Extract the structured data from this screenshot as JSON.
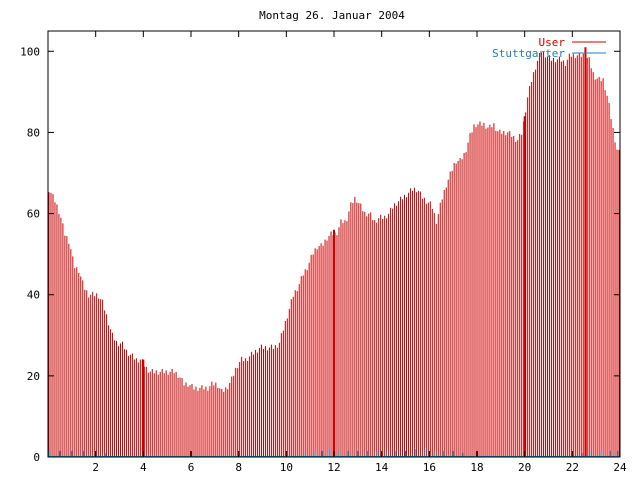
{
  "chart_data": {
    "type": "bar",
    "title": "Montag 26. Januar 2004",
    "xlabel": "",
    "ylabel": "",
    "xlim": [
      0,
      24
    ],
    "ylim": [
      0,
      105
    ],
    "x_ticks": [
      2,
      4,
      6,
      8,
      10,
      12,
      14,
      16,
      18,
      20,
      22,
      24
    ],
    "y_ticks": [
      0,
      20,
      40,
      60,
      80,
      100
    ],
    "grid": false,
    "legend_position": "top-right",
    "colors": {
      "user": "#cc0000",
      "stuttgarter": "#1a7fc0",
      "axes": "#000000",
      "background": "#ffffff"
    },
    "series": [
      {
        "name": "User",
        "style": "impulses",
        "color": "#cc0000",
        "points": [
          [
            0.05,
            66
          ],
          [
            0.3,
            63
          ],
          [
            0.5,
            60
          ],
          [
            0.7,
            55
          ],
          [
            0.9,
            53
          ],
          [
            1.1,
            47
          ],
          [
            1.3,
            46
          ],
          [
            1.5,
            42
          ],
          [
            1.7,
            40
          ],
          [
            1.9,
            40
          ],
          [
            2.1,
            40
          ],
          [
            2.3,
            38
          ],
          [
            2.5,
            34
          ],
          [
            2.7,
            30
          ],
          [
            2.9,
            28
          ],
          [
            3.1,
            28
          ],
          [
            3.3,
            26
          ],
          [
            3.5,
            25
          ],
          [
            3.7,
            24
          ],
          [
            3.9,
            24
          ],
          [
            4.1,
            22
          ],
          [
            4.3,
            21
          ],
          [
            4.5,
            21
          ],
          [
            4.7,
            21
          ],
          [
            4.9,
            21
          ],
          [
            5.1,
            21
          ],
          [
            5.3,
            21
          ],
          [
            5.5,
            20
          ],
          [
            5.7,
            18
          ],
          [
            5.9,
            18
          ],
          [
            6.1,
            17
          ],
          [
            6.3,
            17
          ],
          [
            6.5,
            17
          ],
          [
            6.7,
            17
          ],
          [
            6.9,
            18
          ],
          [
            7.1,
            18
          ],
          [
            7.3,
            16
          ],
          [
            7.5,
            17
          ],
          [
            7.7,
            19
          ],
          [
            7.9,
            22
          ],
          [
            8.1,
            24
          ],
          [
            8.3,
            24
          ],
          [
            8.5,
            25
          ],
          [
            8.7,
            26
          ],
          [
            8.9,
            27
          ],
          [
            9.1,
            27
          ],
          [
            9.3,
            27
          ],
          [
            9.5,
            27
          ],
          [
            9.7,
            28
          ],
          [
            9.9,
            32
          ],
          [
            10.1,
            36
          ],
          [
            10.3,
            40
          ],
          [
            10.5,
            42
          ],
          [
            10.7,
            45
          ],
          [
            10.9,
            47
          ],
          [
            11.1,
            50
          ],
          [
            11.3,
            52
          ],
          [
            11.5,
            52
          ],
          [
            11.7,
            54
          ],
          [
            11.9,
            55
          ],
          [
            12.1,
            55
          ],
          [
            12.3,
            58
          ],
          [
            12.5,
            58
          ],
          [
            12.7,
            62
          ],
          [
            12.9,
            64
          ],
          [
            13.1,
            62
          ],
          [
            13.3,
            60
          ],
          [
            13.5,
            60
          ],
          [
            13.7,
            58
          ],
          [
            13.9,
            59
          ],
          [
            14.1,
            59
          ],
          [
            14.3,
            60
          ],
          [
            14.5,
            62
          ],
          [
            14.7,
            63
          ],
          [
            14.9,
            64
          ],
          [
            15.1,
            65
          ],
          [
            15.3,
            66
          ],
          [
            15.5,
            66
          ],
          [
            15.7,
            64
          ],
          [
            15.9,
            63
          ],
          [
            16.1,
            62
          ],
          [
            16.3,
            58
          ],
          [
            16.5,
            63
          ],
          [
            16.7,
            67
          ],
          [
            16.9,
            70
          ],
          [
            17.1,
            73
          ],
          [
            17.3,
            73
          ],
          [
            17.5,
            75
          ],
          [
            17.7,
            79
          ],
          [
            17.9,
            82
          ],
          [
            18.1,
            82
          ],
          [
            18.3,
            82
          ],
          [
            18.5,
            81
          ],
          [
            18.7,
            82
          ],
          [
            18.9,
            80
          ],
          [
            19.1,
            80
          ],
          [
            19.3,
            80
          ],
          [
            19.5,
            79
          ],
          [
            19.7,
            78
          ],
          [
            19.9,
            80
          ],
          [
            20.1,
            88
          ],
          [
            20.3,
            93
          ],
          [
            20.5,
            97
          ],
          [
            20.7,
            100
          ],
          [
            20.9,
            99
          ],
          [
            21.1,
            98
          ],
          [
            21.3,
            98
          ],
          [
            21.5,
            98
          ],
          [
            21.7,
            97
          ],
          [
            21.9,
            99
          ],
          [
            22.1,
            99
          ],
          [
            22.3,
            99
          ],
          [
            22.5,
            99
          ],
          [
            22.7,
            98
          ],
          [
            22.9,
            94
          ],
          [
            23.1,
            93
          ],
          [
            23.3,
            93
          ],
          [
            23.5,
            88
          ],
          [
            23.7,
            81
          ],
          [
            23.9,
            75
          ]
        ],
        "highlighted_points": [
          [
            4.0,
            24
          ],
          [
            12.0,
            56
          ],
          [
            20.0,
            84
          ],
          [
            22.55,
            101
          ]
        ]
      },
      {
        "name": "Stuttgarter",
        "style": "impulses",
        "color": "#1a7fc0",
        "points": [
          [
            0.05,
            1.5
          ],
          [
            0.5,
            1.5
          ],
          [
            1.0,
            1.5
          ],
          [
            1.5,
            1.5
          ],
          [
            2.0,
            1.5
          ],
          [
            2.4,
            1
          ],
          [
            10.8,
            1
          ],
          [
            11.2,
            1.5
          ],
          [
            11.5,
            1.5
          ],
          [
            11.8,
            2
          ],
          [
            12.2,
            1.5
          ],
          [
            12.6,
            1.5
          ],
          [
            13.0,
            1.5
          ],
          [
            13.4,
            1.5
          ],
          [
            13.8,
            1.5
          ],
          [
            14.2,
            1.5
          ],
          [
            14.6,
            1.5
          ],
          [
            15.0,
            1.5
          ],
          [
            15.4,
            2
          ],
          [
            15.8,
            2
          ],
          [
            16.2,
            1.5
          ],
          [
            16.6,
            1.5
          ],
          [
            17.0,
            1.5
          ],
          [
            17.4,
            1
          ],
          [
            22.4,
            1
          ],
          [
            22.8,
            1.5
          ],
          [
            23.2,
            1.5
          ],
          [
            23.6,
            1.5
          ],
          [
            23.9,
            1.5
          ]
        ]
      }
    ]
  }
}
